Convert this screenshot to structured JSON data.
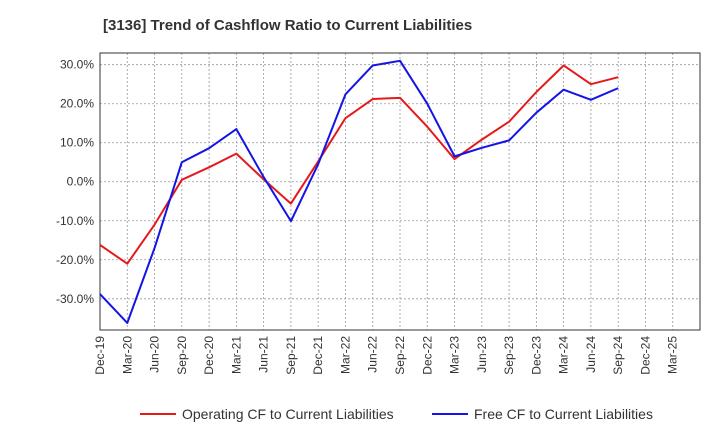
{
  "chart_data": {
    "type": "line",
    "title": "[3136]  Trend of Cashflow Ratio to Current Liabilities",
    "xlabel": "",
    "ylabel": "",
    "x": [
      "Dec-19",
      "Mar-20",
      "Jun-20",
      "Sep-20",
      "Dec-20",
      "Mar-21",
      "Jun-21",
      "Sep-21",
      "Dec-21",
      "Mar-22",
      "Jun-22",
      "Sep-22",
      "Dec-22",
      "Mar-23",
      "Jun-23",
      "Sep-23",
      "Dec-23",
      "Mar-24",
      "Jun-24",
      "Sep-24",
      "Dec-24",
      "Mar-25"
    ],
    "y_ticks": [
      "30.0%",
      "20.0%",
      "10.0%",
      "0.0%",
      "-10.0%",
      "-20.0%",
      "-30.0%"
    ],
    "y_tick_values": [
      30,
      20,
      10,
      0,
      -10,
      -20,
      -30
    ],
    "ylim": [
      -38,
      33
    ],
    "grid": true,
    "legend_position": "bottom",
    "series": [
      {
        "name": "Operating CF to Current Liabilities",
        "color": "#e41a1c",
        "values": [
          -16.2,
          -21.0,
          -11.0,
          0.5,
          3.7,
          7.2,
          0.6,
          -5.6,
          5.2,
          16.3,
          21.2,
          21.5,
          14.1,
          5.8,
          10.8,
          15.4,
          23.0,
          29.8,
          25.0,
          26.8,
          null,
          null
        ]
      },
      {
        "name": "Free CF to Current Liabilities",
        "color": "#1414e6",
        "values": [
          -28.8,
          -36.2,
          -17.0,
          5.0,
          8.6,
          13.5,
          1.2,
          -10.1,
          4.5,
          22.4,
          29.8,
          31.0,
          20.0,
          6.5,
          8.7,
          10.6,
          17.7,
          23.6,
          21.0,
          24.0,
          null,
          null
        ]
      }
    ]
  }
}
